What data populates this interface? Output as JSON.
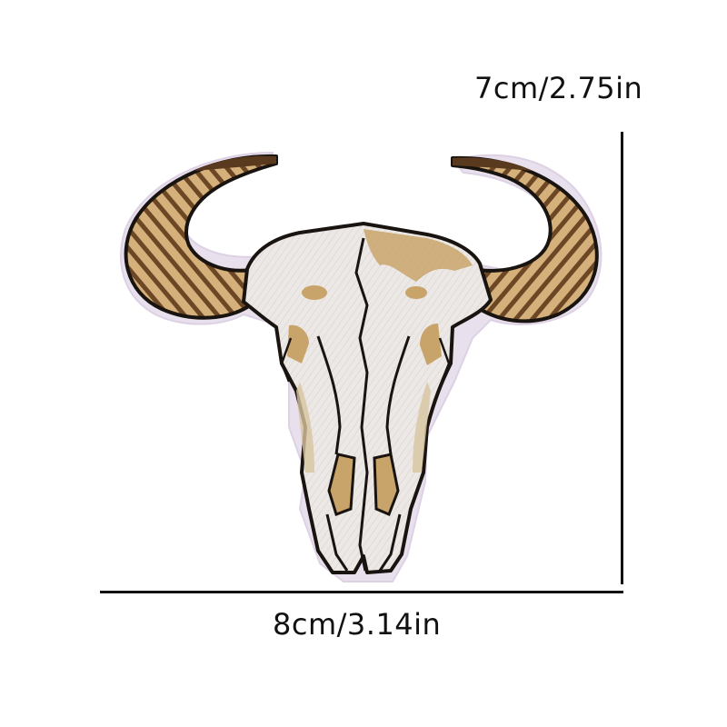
{
  "dimensions": {
    "height_label": "7cm/2.75in",
    "width_label": "8cm/3.14in"
  },
  "product": {
    "icon": "bull-skull-patch-icon",
    "colors": {
      "outline": "#1a1410",
      "skull": "#ece8e6",
      "tan": "#c9a46a",
      "horn_dark": "#5a3a1e",
      "horn_light": "#d6b07a",
      "felt_edge": "#e9e0ee"
    }
  }
}
